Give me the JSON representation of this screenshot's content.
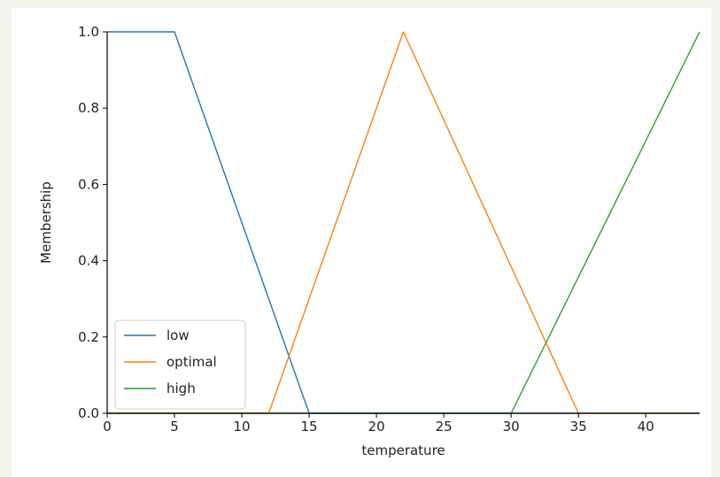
{
  "chart_data": {
    "type": "line",
    "title": "",
    "xlabel": "temperature",
    "ylabel": "Membership",
    "xlim": [
      0,
      44
    ],
    "ylim": [
      0,
      1.0
    ],
    "x_ticks": [
      0,
      5,
      10,
      15,
      20,
      25,
      30,
      35,
      40
    ],
    "y_ticks": [
      "0.0",
      "0.2",
      "0.4",
      "0.6",
      "0.8",
      "1.0"
    ],
    "grid": false,
    "legend_position": "lower-left",
    "series": [
      {
        "name": "low",
        "color": "#1f77b4",
        "x": [
          0,
          5,
          15,
          44
        ],
        "y": [
          1.0,
          1.0,
          0.0,
          0.0
        ]
      },
      {
        "name": "optimal",
        "color": "#ff7f0e",
        "x": [
          0,
          12,
          22,
          35,
          44
        ],
        "y": [
          0.0,
          0.0,
          1.0,
          0.0,
          0.0
        ]
      },
      {
        "name": "high",
        "color": "#2ca02c",
        "x": [
          0,
          30,
          44
        ],
        "y": [
          0.0,
          0.0,
          1.0
        ]
      }
    ]
  }
}
